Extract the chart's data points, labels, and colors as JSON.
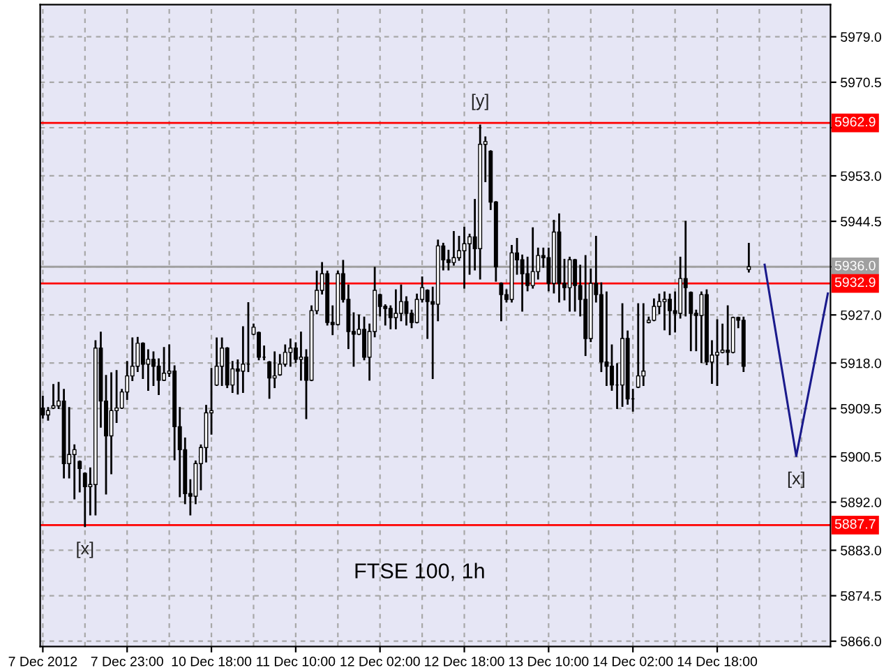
{
  "chart_data": {
    "type": "candlestick",
    "title": "FTSE 100, 1h",
    "categories": [
      "7 Dec 2012",
      null,
      null,
      null,
      null,
      null,
      null,
      null,
      null,
      null,
      null,
      null,
      null,
      null,
      null,
      null,
      "7 Dec 23:00",
      null,
      null,
      null,
      null,
      null,
      null,
      null,
      null,
      null,
      null,
      null,
      null,
      null,
      null,
      null,
      "10 Dec 18:00",
      null,
      null,
      null,
      null,
      null,
      null,
      null,
      null,
      null,
      null,
      null,
      null,
      null,
      null,
      null,
      "11 Dec 10:00",
      null,
      null,
      null,
      null,
      null,
      null,
      null,
      null,
      null,
      null,
      null,
      null,
      null,
      null,
      null,
      "12 Dec 02:00",
      null,
      null,
      null,
      null,
      null,
      null,
      null,
      null,
      null,
      null,
      null,
      null,
      null,
      null,
      null,
      "12 Dec 18:00",
      null,
      null,
      null,
      null,
      null,
      null,
      null,
      null,
      null,
      null,
      null,
      null,
      null,
      null,
      null,
      "13 Dec 10:00",
      null,
      null,
      null,
      null,
      null,
      null,
      null,
      null,
      null,
      null,
      null,
      null,
      null,
      null,
      null,
      "14 Dec 02:00",
      null,
      null,
      null,
      null,
      null,
      null,
      null,
      null,
      null,
      null,
      null,
      null,
      null,
      null,
      null,
      "14 Dec 18:00",
      null,
      null,
      null,
      null,
      null,
      null,
      null,
      null,
      null,
      null,
      null,
      null,
      null,
      null,
      null,
      null,
      null,
      null,
      null,
      null,
      null
    ],
    "ohlc": [
      [
        5909.6,
        5911.7,
        5907.8,
        5908.3
      ],
      [
        5908.3,
        5909.6,
        5907.4,
        5909.1
      ],
      [
        5909.6,
        5913.9,
        5909.6,
        5910.0
      ],
      [
        5910.0,
        5914.3,
        5909.6,
        5910.9
      ],
      [
        5910.9,
        5913.0,
        5896.6,
        5899.2
      ],
      [
        5899.2,
        5909.6,
        5896.6,
        5900.9
      ],
      [
        5900.9,
        5902.6,
        5892.7,
        5901.8
      ],
      [
        5899.6,
        5899.6,
        5894.0,
        5898.3
      ],
      [
        5897.4,
        5897.4,
        5887.5,
        5894.9
      ],
      [
        5894.9,
        5898.3,
        5889.7,
        5895.3
      ],
      [
        5895.3,
        5922.1,
        5889.7,
        5920.8
      ],
      [
        5920.8,
        5923.7,
        5906.1,
        5910.9
      ],
      [
        5910.9,
        5915.6,
        5893.6,
        5904.4
      ],
      [
        5904.4,
        5916.1,
        5897.4,
        5909.1
      ],
      [
        5909.1,
        5916.5,
        5907.0,
        5909.6
      ],
      [
        5909.6,
        5913.0,
        5909.6,
        5912.6
      ],
      [
        5912.6,
        5918.2,
        5911.3,
        5915.6
      ],
      [
        5915.6,
        5922.6,
        5914.8,
        5917.4
      ],
      [
        5917.4,
        5922.7,
        5916.5,
        5921.7
      ],
      [
        5921.7,
        5921.7,
        5915.2,
        5917.8
      ],
      [
        5917.8,
        5920.4,
        5913.0,
        5918.7
      ],
      [
        5918.7,
        5920.0,
        5913.9,
        5917.4
      ],
      [
        5917.4,
        5918.7,
        5912.2,
        5914.8
      ],
      [
        5914.8,
        5920.8,
        5914.8,
        5916.1
      ],
      [
        5916.1,
        5921.3,
        5915.6,
        5916.5
      ],
      [
        5916.5,
        5917.4,
        5900.0,
        5906.1
      ],
      [
        5906.1,
        5909.6,
        5893.1,
        5901.8
      ],
      [
        5901.8,
        5903.9,
        5891.8,
        5893.6
      ],
      [
        5893.6,
        5896.1,
        5889.7,
        5893.1
      ],
      [
        5893.1,
        5899.6,
        5891.8,
        5899.2
      ],
      [
        5899.2,
        5902.6,
        5894.4,
        5902.2
      ],
      [
        5902.2,
        5910.0,
        5899.6,
        5908.7
      ],
      [
        5908.7,
        5916.9,
        5904.8,
        5909.1
      ],
      [
        5913.9,
        5922.6,
        5913.9,
        5917.4
      ],
      [
        5917.4,
        5922.6,
        5913.9,
        5920.8
      ],
      [
        5920.8,
        5920.8,
        5913.5,
        5913.9
      ],
      [
        5913.9,
        5918.2,
        5912.6,
        5916.9
      ],
      [
        5916.9,
        5918.5,
        5912.3,
        5916.5
      ],
      [
        5916.5,
        5924.7,
        5912.6,
        5917.8
      ],
      [
        5917.8,
        5929.2,
        5916.5,
        5917.8
      ],
      [
        5923.4,
        5925.2,
        5923.4,
        5924.7
      ],
      [
        5923.7,
        5923.7,
        5918.7,
        5919.1
      ],
      [
        5919.1,
        5921.1,
        5918.7,
        5919.1
      ],
      [
        5918.2,
        5918.2,
        5911.5,
        5915.2
      ],
      [
        5915.2,
        5920.0,
        5913.5,
        5915.6
      ],
      [
        5915.8,
        5919.5,
        5915.8,
        5917.8
      ],
      [
        5917.8,
        5921.3,
        5917.5,
        5920.0
      ],
      [
        5920.0,
        5922.4,
        5917.5,
        5920.8
      ],
      [
        5920.8,
        5921.7,
        5918.2,
        5918.7
      ],
      [
        5918.7,
        5923.7,
        5914.9,
        5919.1
      ],
      [
        5919.1,
        5920.4,
        5907.7,
        5914.8
      ],
      [
        5914.8,
        5928.6,
        5914.8,
        5927.8
      ],
      [
        5927.8,
        5935.1,
        5927.3,
        5931.6
      ],
      [
        5931.6,
        5936.7,
        5931.0,
        5934.7
      ],
      [
        5934.7,
        5935.1,
        5925.2,
        5925.6
      ],
      [
        5925.6,
        5928.6,
        5923.4,
        5925.2
      ],
      [
        5925.2,
        5935.1,
        5925.2,
        5934.7
      ],
      [
        5934.7,
        5937.1,
        5929.5,
        5929.9
      ],
      [
        5929.9,
        5932.5,
        5920.8,
        5923.9
      ],
      [
        5923.9,
        5927.3,
        5917.5,
        5923.4
      ],
      [
        5923.4,
        5926.9,
        5923.4,
        5924.3
      ],
      [
        5924.3,
        5926.5,
        5918.7,
        5919.1
      ],
      [
        5919.1,
        5925.2,
        5914.9,
        5923.9
      ],
      [
        5923.9,
        5935.8,
        5923.0,
        5931.6
      ],
      [
        5930.8,
        5930.8,
        5926.9,
        5928.6
      ],
      [
        5928.6,
        5928.8,
        5925.2,
        5928.2
      ],
      [
        5928.2,
        5928.6,
        5924.5,
        5926.5
      ],
      [
        5926.5,
        5931.6,
        5924.5,
        5927.3
      ],
      [
        5927.3,
        5932.5,
        5926.0,
        5929.5
      ],
      [
        5929.5,
        5930.3,
        5925.2,
        5927.3
      ],
      [
        5927.3,
        5927.8,
        5924.7,
        5925.6
      ],
      [
        5925.6,
        5930.8,
        5925.6,
        5929.9
      ],
      [
        5929.9,
        5934.0,
        5929.5,
        5932.1
      ],
      [
        5931.6,
        5931.6,
        5922.7,
        5929.5
      ],
      [
        5929.5,
        5932.1,
        5915.2,
        5929.0
      ],
      [
        5929.0,
        5940.9,
        5926.0,
        5939.9
      ],
      [
        5939.9,
        5940.3,
        5935.5,
        5937.3
      ],
      [
        5937.3,
        5939.0,
        5935.5,
        5936.8
      ],
      [
        5936.8,
        5942.5,
        5936.4,
        5937.7
      ],
      [
        5937.7,
        5941.6,
        5937.3,
        5939.0
      ],
      [
        5939.0,
        5943.3,
        5932.1,
        5940.3
      ],
      [
        5940.3,
        5942.0,
        5934.7,
        5941.6
      ],
      [
        5941.6,
        5948.5,
        5935.5,
        5939.4
      ],
      [
        5939.4,
        5962.4,
        5933.8,
        5958.9
      ],
      [
        5958.9,
        5960.2,
        5952.0,
        5959.4
      ],
      [
        5957.6,
        5957.6,
        5946.8,
        5948.1
      ],
      [
        5948.1,
        5948.1,
        5933.4,
        5936.0
      ],
      [
        5932.9,
        5932.9,
        5926.0,
        5930.8
      ],
      [
        5930.8,
        5931.6,
        5929.5,
        5929.9
      ],
      [
        5929.9,
        5939.9,
        5929.5,
        5938.6
      ],
      [
        5938.6,
        5941.2,
        5934.7,
        5937.3
      ],
      [
        5937.3,
        5938.1,
        5927.8,
        5934.7
      ],
      [
        5934.7,
        5937.7,
        5931.6,
        5932.5
      ],
      [
        5932.5,
        5943.2,
        5932.1,
        5935.1
      ],
      [
        5935.1,
        5939.4,
        5933.8,
        5938.1
      ],
      [
        5938.1,
        5939.4,
        5936.0,
        5937.7
      ],
      [
        5937.7,
        5939.4,
        5931.6,
        5932.9
      ],
      [
        5932.9,
        5944.6,
        5931.2,
        5942.5
      ],
      [
        5942.5,
        5945.8,
        5929.5,
        5932.9
      ],
      [
        5932.9,
        5937.3,
        5929.9,
        5932.1
      ],
      [
        5932.1,
        5937.7,
        5927.8,
        5937.3
      ],
      [
        5937.3,
        5937.3,
        5927.8,
        5932.5
      ],
      [
        5932.5,
        5936.2,
        5926.9,
        5929.9
      ],
      [
        5929.9,
        5938.0,
        5919.5,
        5922.6
      ],
      [
        5922.6,
        5935.5,
        5922.1,
        5932.9
      ],
      [
        5932.9,
        5941.6,
        5929.5,
        5930.8
      ],
      [
        5930.8,
        5932.9,
        5916.5,
        5918.2
      ],
      [
        5918.2,
        5931.2,
        5913.9,
        5917.4
      ],
      [
        5917.4,
        5921.3,
        5913.0,
        5913.9
      ],
      [
        5913.9,
        5917.8,
        5909.6,
        5913.9
      ],
      [
        5913.9,
        5929.0,
        5910.0,
        5922.6
      ],
      [
        5922.6,
        5923.9,
        5910.4,
        5911.3
      ],
      [
        5911.3,
        5913.0,
        5909.1,
        5911.3
      ],
      [
        5913.5,
        5929.0,
        5913.5,
        5915.6
      ],
      [
        5915.6,
        5929.0,
        5913.9,
        5916.5
      ],
      [
        5925.6,
        5926.5,
        5925.6,
        5926.0
      ],
      [
        5926.0,
        5929.9,
        5926.0,
        5928.6
      ],
      [
        5928.6,
        5930.8,
        5927.3,
        5929.5
      ],
      [
        5929.5,
        5931.2,
        5924.3,
        5929.9
      ],
      [
        5929.9,
        5930.8,
        5923.4,
        5927.8
      ],
      [
        5927.8,
        5931.2,
        5923.9,
        5927.3
      ],
      [
        5927.3,
        5937.7,
        5926.5,
        5933.8
      ],
      [
        5933.8,
        5944.4,
        5926.9,
        5932.1
      ],
      [
        5931.2,
        5931.2,
        5920.4,
        5927.3
      ],
      [
        5927.3,
        5927.8,
        5920.4,
        5926.9
      ],
      [
        5926.9,
        5931.2,
        5918.2,
        5930.8
      ],
      [
        5930.8,
        5931.6,
        5917.8,
        5918.2
      ],
      [
        5918.2,
        5922.1,
        5914.3,
        5919.5
      ],
      [
        5919.5,
        5926.0,
        5913.9,
        5920.0
      ],
      [
        5920.0,
        5925.2,
        5920.0,
        5920.4
      ],
      [
        5920.4,
        5928.6,
        5917.8,
        5920.0
      ],
      [
        5920.0,
        5926.5,
        5920.0,
        5926.5
      ],
      [
        5926.5,
        5926.5,
        5924.7,
        5926.0
      ],
      [
        5926.0,
        5926.5,
        5916.5,
        5917.4
      ],
      [
        5935.5,
        5940.3,
        5935.1,
        5936.0
      ],
      null,
      null,
      null,
      null,
      null,
      null,
      null,
      null,
      null,
      null,
      null,
      null,
      null,
      null,
      null
    ],
    "color": "#000000",
    "series": [
      {
        "type": "line",
        "color": "#1a1a8c",
        "values": [
          null,
          null,
          null,
          null,
          null,
          null,
          null,
          null,
          null,
          null,
          null,
          null,
          null,
          null,
          null,
          null,
          null,
          null,
          null,
          null,
          null,
          null,
          null,
          null,
          null,
          null,
          null,
          null,
          null,
          null,
          null,
          null,
          null,
          null,
          null,
          null,
          null,
          null,
          null,
          null,
          null,
          null,
          null,
          null,
          null,
          null,
          null,
          null,
          null,
          null,
          null,
          null,
          null,
          null,
          null,
          null,
          null,
          null,
          null,
          null,
          null,
          null,
          null,
          null,
          null,
          null,
          null,
          null,
          null,
          null,
          null,
          null,
          null,
          null,
          null,
          null,
          null,
          null,
          null,
          null,
          null,
          null,
          null,
          null,
          null,
          null,
          null,
          null,
          null,
          null,
          null,
          null,
          null,
          null,
          null,
          null,
          null,
          null,
          null,
          null,
          null,
          null,
          null,
          null,
          null,
          null,
          null,
          null,
          null,
          null,
          null,
          null,
          null,
          null,
          null,
          null,
          null,
          null,
          null,
          null,
          null,
          null,
          null,
          null,
          null,
          null,
          null,
          null,
          null,
          null,
          null,
          null,
          null,
          null,
          null,
          null,
          null,
          5936.4,
          null,
          null,
          null,
          null,
          null,
          5900.6,
          null,
          null,
          null,
          null,
          null,
          5931.0
        ]
      }
    ],
    "ylim": [
      5865.0,
      5985.0
    ],
    "yticks": [
      {
        "value": 5979.0,
        "label": "5979.0"
      },
      {
        "value": 5970.5,
        "label": "5970.5"
      },
      {
        "value": 5962.0,
        "label": null
      },
      {
        "value": 5953.0,
        "label": "5953.0"
      },
      {
        "value": 5944.5,
        "label": "5944.5"
      },
      {
        "value": 5936.0,
        "label": null
      },
      {
        "value": 5927.0,
        "label": "5927.0"
      },
      {
        "value": 5918.0,
        "label": "5918.0"
      },
      {
        "value": 5909.5,
        "label": "5909.5"
      },
      {
        "value": 5900.5,
        "label": "5900.5"
      },
      {
        "value": 5892.0,
        "label": "5892.0"
      },
      {
        "value": 5883.0,
        "label": "5883.0"
      },
      {
        "value": 5874.5,
        "label": "5874.5"
      },
      {
        "value": 5866.0,
        "label": "5866.0"
      }
    ],
    "ref_lines": [
      {
        "axis": "y",
        "value": 5962.9,
        "label": "5962.9",
        "color": "#ff0000"
      },
      {
        "axis": "y",
        "value": 5936.0,
        "label": "5936.0",
        "color": "#a0a0a0"
      },
      {
        "axis": "y",
        "value": 5932.9,
        "label": "5932.9",
        "color": "#ff0000"
      },
      {
        "axis": "y",
        "value": 5887.7,
        "label": "5887.7",
        "color": "#ff0000"
      }
    ],
    "annotations": [
      {
        "text": "[y]",
        "y": 5962.4
      },
      {
        "text": "[x]",
        "y": 5887.5
      },
      {
        "text": "[x]",
        "y": 5900.6
      }
    ],
    "grid": true
  }
}
